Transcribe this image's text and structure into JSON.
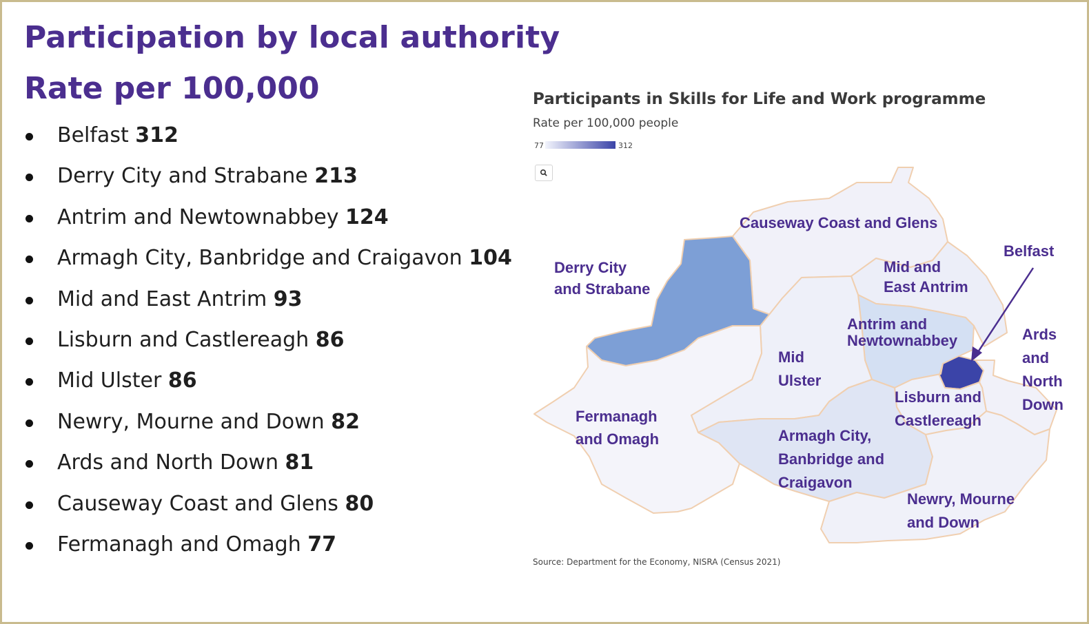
{
  "heading": {
    "title": "Participation by local authority",
    "subtitle": "Rate per 100,000"
  },
  "list": [
    {
      "name": "Belfast",
      "value": "312"
    },
    {
      "name": "Derry City and Strabane",
      "value": "213"
    },
    {
      "name": "Antrim and Newtownabbey",
      "value": "124"
    },
    {
      "name": "Armagh City, Banbridge and Craigavon",
      "value": "104"
    },
    {
      "name": "Mid and East Antrim",
      "value": "93"
    },
    {
      "name": "Lisburn and Castlereagh",
      "value": "86"
    },
    {
      "name": "Mid Ulster",
      "value": "86"
    },
    {
      "name": "Newry, Mourne and Down",
      "value": "82"
    },
    {
      "name": "Ards and North Down",
      "value": "81"
    },
    {
      "name": "Causeway Coast and Glens",
      "value": "80"
    },
    {
      "name": "Fermanagh and Omagh",
      "value": "77"
    }
  ],
  "map": {
    "title": "Participants in Skills for Life and Work programme",
    "subtitle": "Rate per 100,000 people",
    "legend": {
      "min": "77",
      "max": "312",
      "low_color": "#f2f4fc",
      "high_color": "#3b44a8"
    },
    "search_icon": "magnifier-icon",
    "regions": {
      "causeway": {
        "label": "Causeway Coast and Glens",
        "rate": 80,
        "color": "#f1f1f9"
      },
      "derry": {
        "label": "Derry City\nand Strabane",
        "rate": 213,
        "color": "#7d9fd6"
      },
      "mideast": {
        "label": "Mid and\nEast Antrim",
        "rate": 93,
        "color": "#eceef8"
      },
      "belfast": {
        "label": "Belfast",
        "rate": 312,
        "color": "#3b44a8"
      },
      "antrim": {
        "label": "Antrim and\nNewtownabbey",
        "rate": 124,
        "color": "#d4e0f3"
      },
      "midulster": {
        "label": "Mid\nUlster",
        "rate": 86,
        "color": "#eef0f9"
      },
      "ards": {
        "label": "Ards\nand\nNorth\nDown",
        "rate": 81,
        "color": "#f1f1f9"
      },
      "lisburn": {
        "label": "Lisburn and\nCastlereagh",
        "rate": 86,
        "color": "#eef0f9"
      },
      "fermanagh": {
        "label": "Fermanagh\nand Omagh",
        "rate": 77,
        "color": "#f4f4fa"
      },
      "armagh": {
        "label": "Armagh City,\nBanbridge and\nCraigavon",
        "rate": 104,
        "color": "#dfe5f4"
      },
      "newry": {
        "label": "Newry, Mourne\nand Down",
        "rate": 82,
        "color": "#f0f1f9"
      }
    },
    "border_color": "#f0cfb0",
    "label_color": "#4b2e8f",
    "source": "Source: Department for the Economy, NISRA (Census 2021)"
  }
}
